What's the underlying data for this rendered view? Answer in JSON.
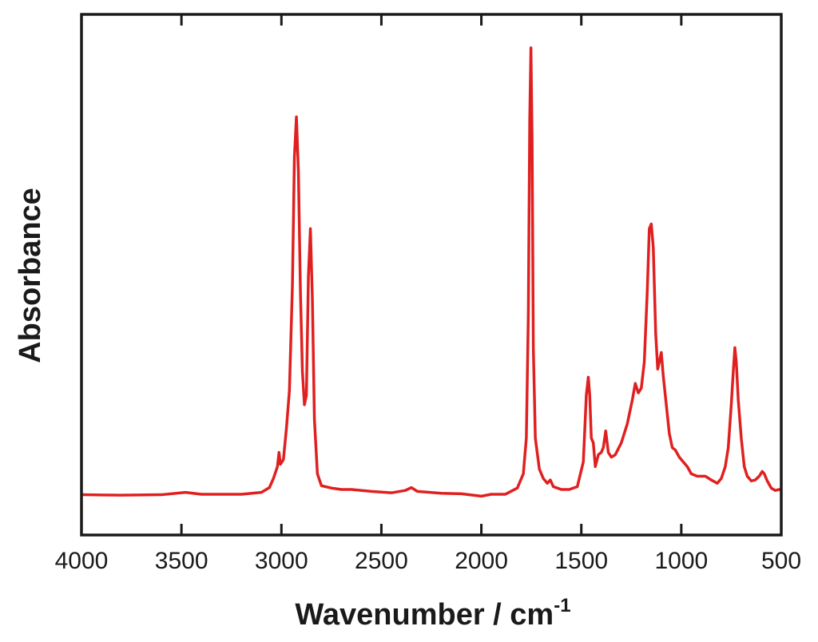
{
  "chart_data": {
    "type": "line",
    "xlabel": "Wavenumber / cm",
    "xlabel_superscript": "-1",
    "ylabel": "Absorbance",
    "xlim": [
      4000,
      500
    ],
    "ylim": [
      0,
      1
    ],
    "x_axis_reversed": true,
    "x_ticks": [
      4000,
      3500,
      3000,
      2500,
      2000,
      1500,
      1000,
      500
    ],
    "y_ticks_labeled": false,
    "grid": false,
    "legend": "none",
    "line_color": "#e02020",
    "series": [
      {
        "values": [
          [
            4000,
            0.041
          ],
          [
            3800,
            0.04
          ],
          [
            3600,
            0.041
          ],
          [
            3480,
            0.046
          ],
          [
            3400,
            0.042
          ],
          [
            3200,
            0.042
          ],
          [
            3100,
            0.046
          ],
          [
            3060,
            0.056
          ],
          [
            3040,
            0.075
          ],
          [
            3020,
            0.1
          ],
          [
            3012,
            0.13
          ],
          [
            3005,
            0.105
          ],
          [
            2990,
            0.115
          ],
          [
            2975,
            0.18
          ],
          [
            2960,
            0.26
          ],
          [
            2945,
            0.48
          ],
          [
            2935,
            0.75
          ],
          [
            2925,
            0.835
          ],
          [
            2915,
            0.72
          ],
          [
            2905,
            0.47
          ],
          [
            2895,
            0.3
          ],
          [
            2885,
            0.23
          ],
          [
            2875,
            0.25
          ],
          [
            2865,
            0.5
          ],
          [
            2855,
            0.6
          ],
          [
            2845,
            0.45
          ],
          [
            2835,
            0.2
          ],
          [
            2820,
            0.085
          ],
          [
            2800,
            0.06
          ],
          [
            2750,
            0.055
          ],
          [
            2700,
            0.052
          ],
          [
            2650,
            0.052
          ],
          [
            2550,
            0.048
          ],
          [
            2450,
            0.045
          ],
          [
            2380,
            0.05
          ],
          [
            2350,
            0.056
          ],
          [
            2320,
            0.048
          ],
          [
            2200,
            0.044
          ],
          [
            2100,
            0.043
          ],
          [
            2000,
            0.038
          ],
          [
            1950,
            0.042
          ],
          [
            1880,
            0.042
          ],
          [
            1820,
            0.055
          ],
          [
            1790,
            0.085
          ],
          [
            1775,
            0.16
          ],
          [
            1765,
            0.42
          ],
          [
            1758,
            0.83
          ],
          [
            1752,
            0.98
          ],
          [
            1746,
            0.78
          ],
          [
            1740,
            0.35
          ],
          [
            1730,
            0.16
          ],
          [
            1710,
            0.095
          ],
          [
            1690,
            0.075
          ],
          [
            1670,
            0.065
          ],
          [
            1655,
            0.072
          ],
          [
            1640,
            0.058
          ],
          [
            1600,
            0.052
          ],
          [
            1560,
            0.052
          ],
          [
            1520,
            0.058
          ],
          [
            1490,
            0.11
          ],
          [
            1475,
            0.25
          ],
          [
            1465,
            0.288
          ],
          [
            1458,
            0.25
          ],
          [
            1450,
            0.16
          ],
          [
            1440,
            0.15
          ],
          [
            1430,
            0.1
          ],
          [
            1415,
            0.125
          ],
          [
            1400,
            0.13
          ],
          [
            1390,
            0.14
          ],
          [
            1378,
            0.175
          ],
          [
            1365,
            0.13
          ],
          [
            1350,
            0.12
          ],
          [
            1330,
            0.125
          ],
          [
            1300,
            0.15
          ],
          [
            1270,
            0.19
          ],
          [
            1245,
            0.24
          ],
          [
            1230,
            0.275
          ],
          [
            1215,
            0.255
          ],
          [
            1200,
            0.265
          ],
          [
            1185,
            0.32
          ],
          [
            1170,
            0.47
          ],
          [
            1160,
            0.6
          ],
          [
            1150,
            0.61
          ],
          [
            1140,
            0.56
          ],
          [
            1128,
            0.38
          ],
          [
            1118,
            0.305
          ],
          [
            1110,
            0.32
          ],
          [
            1100,
            0.34
          ],
          [
            1090,
            0.29
          ],
          [
            1075,
            0.23
          ],
          [
            1060,
            0.17
          ],
          [
            1045,
            0.14
          ],
          [
            1030,
            0.135
          ],
          [
            1010,
            0.12
          ],
          [
            990,
            0.11
          ],
          [
            970,
            0.1
          ],
          [
            950,
            0.085
          ],
          [
            920,
            0.08
          ],
          [
            880,
            0.08
          ],
          [
            850,
            0.072
          ],
          [
            820,
            0.065
          ],
          [
            800,
            0.075
          ],
          [
            780,
            0.1
          ],
          [
            765,
            0.14
          ],
          [
            750,
            0.23
          ],
          [
            740,
            0.3
          ],
          [
            732,
            0.35
          ],
          [
            725,
            0.32
          ],
          [
            715,
            0.24
          ],
          [
            700,
            0.16
          ],
          [
            685,
            0.1
          ],
          [
            670,
            0.08
          ],
          [
            650,
            0.07
          ],
          [
            630,
            0.072
          ],
          [
            610,
            0.08
          ],
          [
            595,
            0.09
          ],
          [
            585,
            0.085
          ],
          [
            570,
            0.07
          ],
          [
            550,
            0.055
          ],
          [
            530,
            0.05
          ],
          [
            510,
            0.052
          ],
          [
            500,
            0.052
          ]
        ]
      }
    ]
  }
}
